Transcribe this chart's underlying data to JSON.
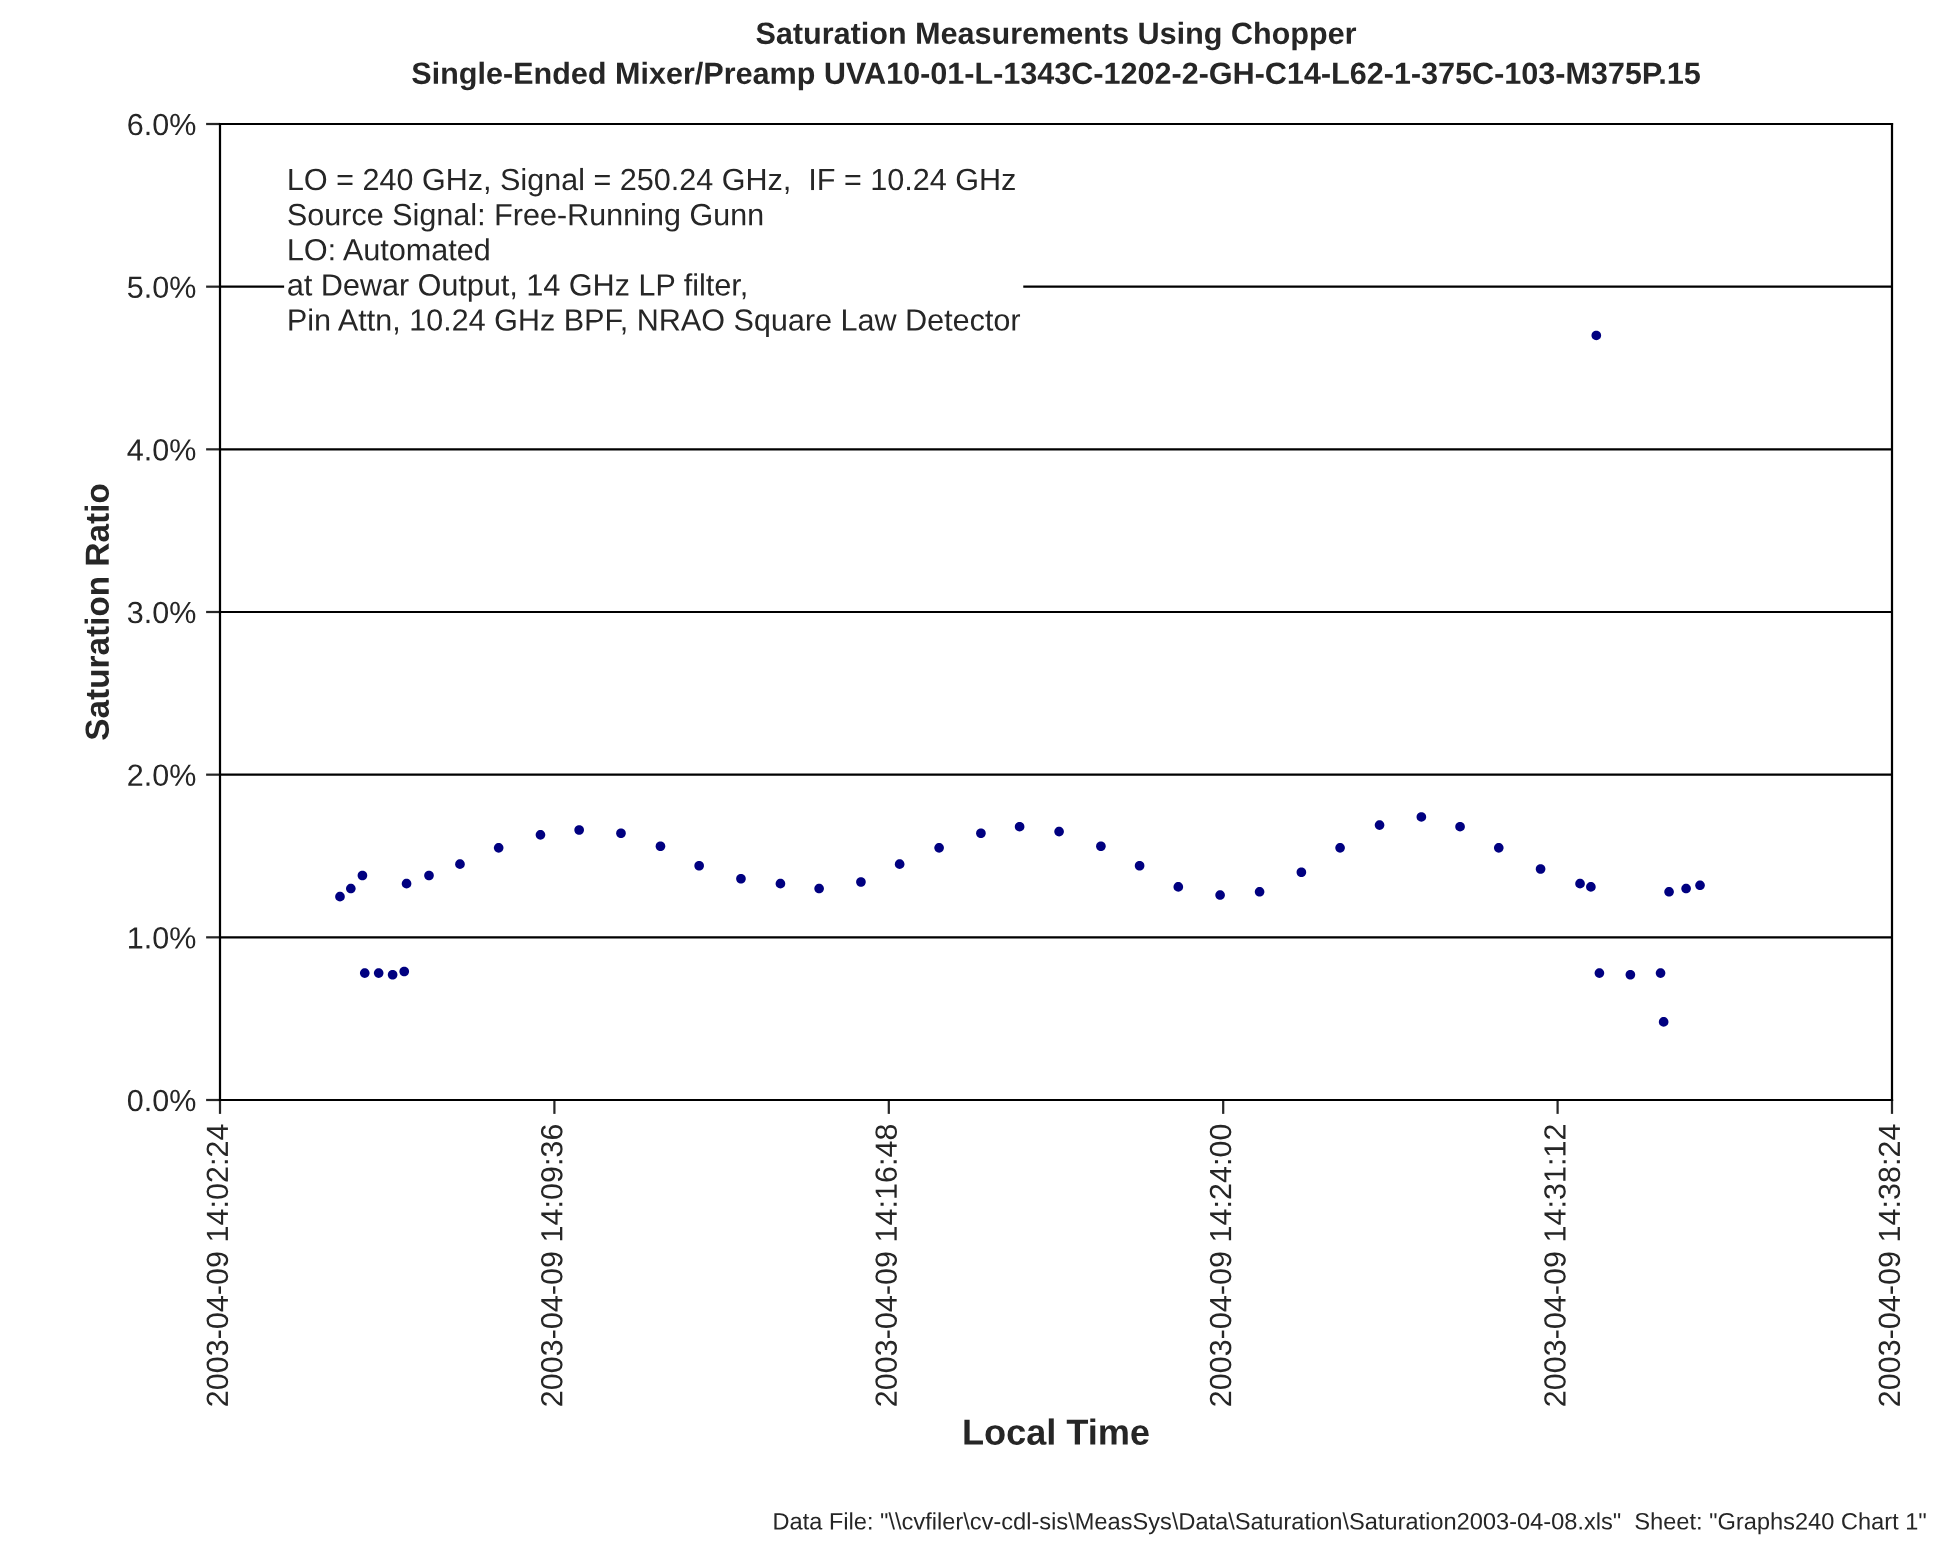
{
  "chart_data": {
    "type": "scatter",
    "title": "Saturation Measurements Using Chopper",
    "subtitle": "Single-Ended Mixer/Preamp UVA10-01-L-1343C-1202-2-GH-C14-L62-1-375C-103-M375P.15",
    "xlabel": "Local Time",
    "ylabel": "Saturation Ratio",
    "annotations": [
      "LO = 240 GHz, Signal = 250.24 GHz,  IF = 10.24 GHz\nSource Signal: Free-Running Gunn\nLO: Automated\nat Dewar Output, 14 GHz LP filter,\nPin Attn, 10.24 GHz BPF, NRAO Square Law Detector",
      "Data File: \"\\\\cvfiler\\cv-cdl-sis\\MeasSys\\Data\\Saturation\\Saturation2003-04-08.xls\"  Sheet: \"Graphs240 Chart 1\""
    ],
    "series": [
      {
        "color": "#000080",
        "x": [
          "2003-04-09T14:04:59",
          "2003-04-09T14:05:13",
          "2003-04-09T14:05:28",
          "2003-04-09T14:05:31",
          "2003-04-09T14:05:49",
          "2003-04-09T14:06:07",
          "2003-04-09T14:06:22",
          "2003-04-09T14:06:25",
          "2003-04-09T14:06:54",
          "2003-04-09T14:07:34",
          "2003-04-09T14:08:24",
          "2003-04-09T14:09:18",
          "2003-04-09T14:10:08",
          "2003-04-09T14:11:02",
          "2003-04-09T14:11:53",
          "2003-04-09T14:12:43",
          "2003-04-09T14:13:37",
          "2003-04-09T14:14:28",
          "2003-04-09T14:15:18",
          "2003-04-09T14:16:12",
          "2003-04-09T14:17:02",
          "2003-04-09T14:17:53",
          "2003-04-09T14:18:47",
          "2003-04-09T14:19:37",
          "2003-04-09T14:20:28",
          "2003-04-09T14:21:22",
          "2003-04-09T14:22:12",
          "2003-04-09T14:23:02",
          "2003-04-09T14:23:56",
          "2003-04-09T14:24:47",
          "2003-04-09T14:25:41",
          "2003-04-09T14:26:31",
          "2003-04-09T14:27:22",
          "2003-04-09T14:28:16",
          "2003-04-09T14:29:06",
          "2003-04-09T14:29:56",
          "2003-04-09T14:30:50",
          "2003-04-09T14:31:41",
          "2003-04-09T14:31:55",
          "2003-04-09T14:32:02",
          "2003-04-09T14:32:06",
          "2003-04-09T14:32:46",
          "2003-04-09T14:33:25",
          "2003-04-09T14:33:29",
          "2003-04-09T14:33:36",
          "2003-04-09T14:33:58",
          "2003-04-09T14:34:16"
        ],
        "values": [
          1.25,
          1.3,
          1.38,
          0.78,
          0.78,
          0.77,
          0.79,
          1.33,
          1.38,
          1.45,
          1.55,
          1.63,
          1.66,
          1.64,
          1.56,
          1.44,
          1.36,
          1.33,
          1.3,
          1.34,
          1.45,
          1.55,
          1.64,
          1.68,
          1.65,
          1.56,
          1.44,
          1.31,
          1.26,
          1.28,
          1.4,
          1.55,
          1.69,
          1.74,
          1.68,
          1.55,
          1.42,
          1.33,
          1.31,
          4.7,
          0.78,
          0.77,
          0.78,
          0.48,
          1.28,
          1.3,
          1.32
        ]
      }
    ],
    "xlim": [
      "2003-04-09T14:02:24",
      "2003-04-09T14:38:24"
    ],
    "xticks": [
      {
        "value": "2003-04-09T14:02:24",
        "label": "2003-04-09 14:02:24"
      },
      {
        "value": "2003-04-09T14:09:36",
        "label": "2003-04-09 14:09:36"
      },
      {
        "value": "2003-04-09T14:16:48",
        "label": "2003-04-09 14:16:48"
      },
      {
        "value": "2003-04-09T14:24:00",
        "label": "2003-04-09 14:24:00"
      },
      {
        "value": "2003-04-09T14:31:12",
        "label": "2003-04-09 14:31:12"
      },
      {
        "value": "2003-04-09T14:38:24",
        "label": "2003-04-09 14:38:24"
      }
    ],
    "ylim": [
      0,
      6
    ],
    "yticks": [
      {
        "value": 0,
        "label": "0.0%"
      },
      {
        "value": 1,
        "label": "1.0%"
      },
      {
        "value": 2,
        "label": "2.0%"
      },
      {
        "value": 3,
        "label": "3.0%"
      },
      {
        "value": 4,
        "label": "4.0%"
      },
      {
        "value": 5,
        "label": "5.0%"
      },
      {
        "value": 6,
        "label": "6.0%"
      }
    ],
    "grid": "y",
    "marker": "circle"
  }
}
